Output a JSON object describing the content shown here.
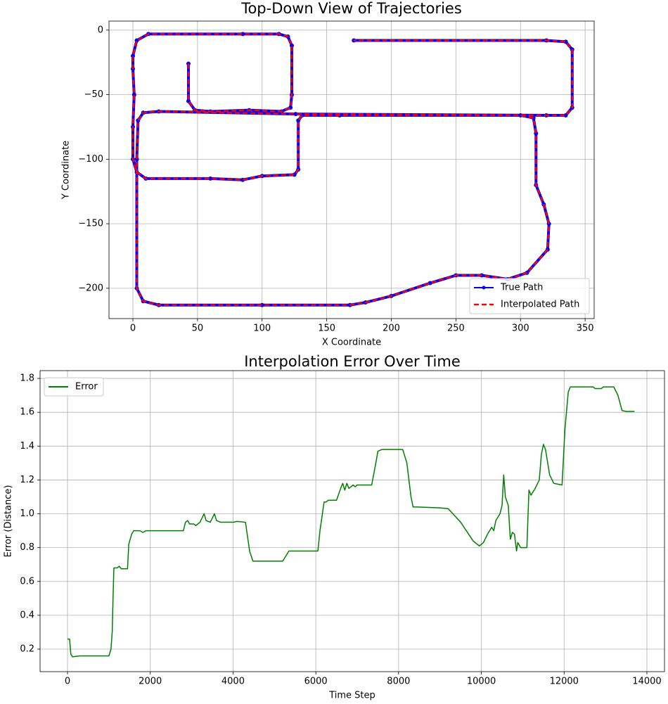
{
  "chart_data": [
    {
      "type": "line",
      "title": "Top-Down View of Trajectories",
      "x_label": "X Coordinate",
      "y_label": "Y Coordinate",
      "x": [
        43,
        43,
        48,
        60,
        90,
        115,
        122,
        123,
        123,
        120,
        113,
        85,
        12,
        3,
        0,
        0,
        1,
        0,
        0,
        3,
        10,
        60,
        85,
        100,
        125,
        128,
        128,
        131,
        160,
        300,
        310,
        312,
        312,
        318,
        322,
        321,
        305,
        290,
        270,
        250,
        230,
        200,
        180,
        168,
        100,
        20,
        8,
        3,
        3,
        4,
        8,
        20,
        126,
        320,
        335,
        340,
        340,
        335,
        320,
        171
      ],
      "series": [
        {
          "name": "True Path",
          "color": "#0000ff",
          "linestyle": "solid",
          "marker": true,
          "values": [
            -26,
            -55,
            -62,
            -63,
            -62,
            -63,
            -60,
            -50,
            -12,
            -5,
            -3,
            -3,
            -3,
            -8,
            -20,
            -30,
            -50,
            -75,
            -100,
            -110,
            -115,
            -115,
            -116,
            -113,
            -112,
            -108,
            -70,
            -66,
            -66,
            -66,
            -68,
            -80,
            -120,
            -135,
            -150,
            -170,
            -188,
            -193,
            -190,
            -190,
            -196,
            -206,
            -211,
            -213,
            -213,
            -213,
            -210,
            -200,
            -100,
            -70,
            -64,
            -63,
            -65,
            -66,
            -66,
            -60,
            -15,
            -9,
            -8,
            -8
          ]
        },
        {
          "name": "Interpolated Path",
          "color": "#ff0000",
          "linestyle": "dashed",
          "marker": false,
          "values": [
            -26,
            -55,
            -62,
            -63,
            -62,
            -63,
            -60,
            -50,
            -12,
            -5,
            -3,
            -3,
            -3,
            -8,
            -20,
            -30,
            -50,
            -75,
            -100,
            -110,
            -115,
            -115,
            -116,
            -113,
            -112,
            -108,
            -70,
            -66,
            -66,
            -66,
            -68,
            -80,
            -120,
            -135,
            -150,
            -170,
            -188,
            -193,
            -190,
            -190,
            -196,
            -206,
            -211,
            -213,
            -213,
            -213,
            -210,
            -200,
            -100,
            -70,
            -64,
            -63,
            -65,
            -66,
            -66,
            -60,
            -15,
            -9,
            -8,
            -8
          ]
        }
      ],
      "xlim": [
        -18.5,
        357
      ],
      "ylim": [
        -223.5,
        7
      ],
      "xticks": [
        0,
        50,
        100,
        150,
        200,
        250,
        300,
        350
      ],
      "yticks": [
        0,
        {
          "value": -50,
          "label": "−50"
        },
        {
          "value": -100,
          "label": "−100"
        },
        {
          "value": -150,
          "label": "−150"
        },
        {
          "value": -200,
          "label": "−200"
        }
      ],
      "grid": true,
      "legend": "lower right"
    },
    {
      "type": "line",
      "title": "Interpolation Error Over Time",
      "x_label": "Time Step",
      "y_label": "Error (Distance)",
      "x": [
        0,
        50,
        80,
        120,
        300,
        1000,
        1050,
        1080,
        1100,
        1120,
        1200,
        1250,
        1300,
        1450,
        1480,
        1550,
        1600,
        1750,
        1820,
        1900,
        2800,
        2850,
        2900,
        2950,
        3050,
        3100,
        3200,
        3300,
        3350,
        3450,
        3550,
        3600,
        3700,
        4000,
        4100,
        4300,
        4400,
        4480,
        5200,
        5350,
        6050,
        6100,
        6200,
        6250,
        6300,
        6500,
        6600,
        6650,
        6700,
        6750,
        6800,
        6900,
        6950,
        7000,
        7350,
        7450,
        7500,
        7600,
        8100,
        8200,
        8300,
        8350,
        8450,
        9000,
        9200,
        9500,
        9800,
        9950,
        10050,
        10150,
        10250,
        10300,
        10350,
        10450,
        10500,
        10540,
        10580,
        10650,
        10700,
        10750,
        10800,
        10850,
        10880,
        10950,
        11100,
        11150,
        11200,
        11300,
        11400,
        11450,
        11500,
        11550,
        11650,
        11750,
        11950,
        12020,
        12100,
        12150,
        12700,
        12750,
        12900,
        12950,
        13200,
        13300,
        13400,
        13500,
        13700
      ],
      "series": [
        {
          "name": "Error",
          "color": "#008000",
          "linestyle": "solid",
          "marker": false,
          "values": [
            0.26,
            0.26,
            0.17,
            0.155,
            0.16,
            0.16,
            0.2,
            0.3,
            0.5,
            0.68,
            0.68,
            0.69,
            0.675,
            0.675,
            0.82,
            0.88,
            0.9,
            0.9,
            0.89,
            0.9,
            0.9,
            0.95,
            0.96,
            0.94,
            0.94,
            0.93,
            0.95,
            1.0,
            0.96,
            0.95,
            1.0,
            0.96,
            0.95,
            0.95,
            0.955,
            0.95,
            0.78,
            0.72,
            0.72,
            0.78,
            0.78,
            0.9,
            1.07,
            1.07,
            1.08,
            1.08,
            1.15,
            1.18,
            1.14,
            1.18,
            1.15,
            1.17,
            1.16,
            1.17,
            1.17,
            1.3,
            1.37,
            1.38,
            1.38,
            1.3,
            1.1,
            1.04,
            1.04,
            1.035,
            1.03,
            0.95,
            0.84,
            0.81,
            0.83,
            0.88,
            0.92,
            0.9,
            0.96,
            1.0,
            1.05,
            1.23,
            1.1,
            1.05,
            0.85,
            0.89,
            0.88,
            0.78,
            0.83,
            0.8,
            0.8,
            1.14,
            1.11,
            1.15,
            1.2,
            1.35,
            1.41,
            1.38,
            1.23,
            1.18,
            1.17,
            1.5,
            1.72,
            1.75,
            1.75,
            1.74,
            1.74,
            1.75,
            1.75,
            1.7,
            1.61,
            1.605,
            1.605
          ]
        }
      ],
      "xlim": [
        -663,
        14425
      ],
      "ylim": [
        0.067,
        1.846
      ],
      "xticks": [
        0,
        2000,
        4000,
        6000,
        8000,
        10000,
        12000,
        14000
      ],
      "yticks": [
        0.2,
        0.4,
        0.6,
        0.8,
        {
          "value": 1,
          "label": "1.0"
        },
        1.2,
        1.4,
        1.6,
        1.8
      ],
      "grid": true,
      "legend": "upper left"
    }
  ]
}
